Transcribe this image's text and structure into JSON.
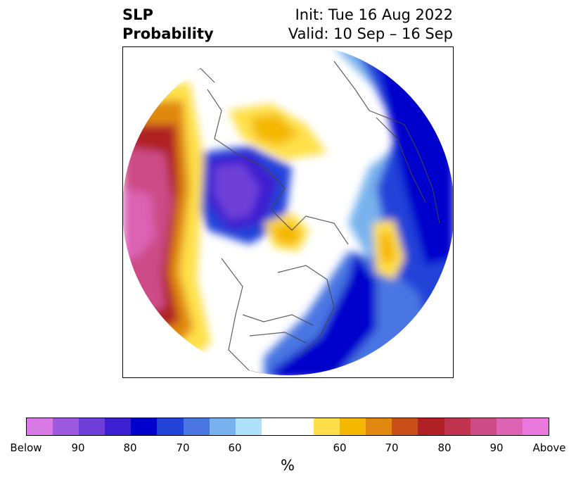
{
  "title": {
    "line1": "SLP",
    "line2": "Probability"
  },
  "dates": {
    "init": "Init: Tue 16 Aug 2022",
    "valid": "Valid: 10 Sep – 16 Sep"
  },
  "map": {
    "projection": "north-polar-stereographic",
    "region": "Northern Hemisphere"
  },
  "colorbar": {
    "unit": "%",
    "colors": [
      "#d879e6",
      "#9c59e0",
      "#6e3fd8",
      "#3c1fd0",
      "#0000cc",
      "#2242d8",
      "#4a76e2",
      "#78b2ee",
      "#aee0fa",
      "#ffffff",
      "#ffe04a",
      "#f4b800",
      "#e08810",
      "#c85018",
      "#b02024",
      "#c03450",
      "#cc4c86",
      "#dc62b4",
      "#e878de"
    ],
    "labels": [
      "Below",
      "90",
      "80",
      "70",
      "60",
      "60",
      "70",
      "80",
      "90",
      "Above"
    ]
  }
}
